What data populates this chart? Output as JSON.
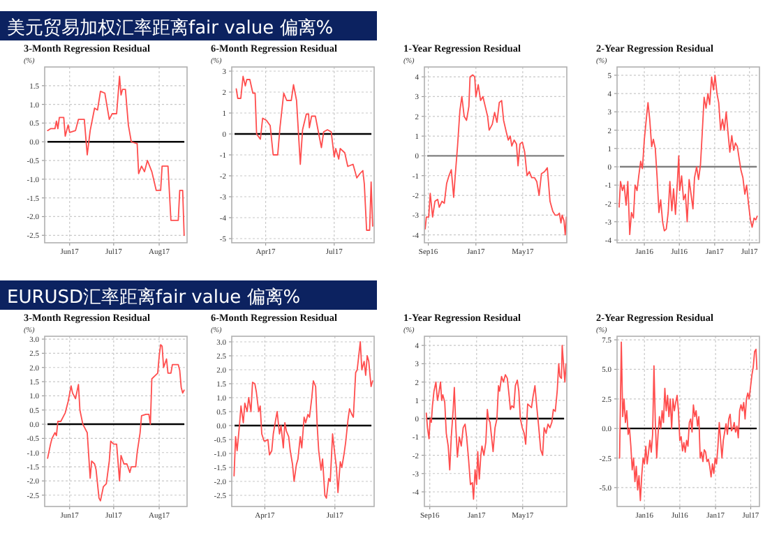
{
  "chart_data": [
    {
      "type": "line",
      "title": "3-Month Regression Residual",
      "ylabel": "(%)",
      "annotations": [
        "美元贸易加权汇率距离fair value 偏离%"
      ],
      "grid": true,
      "xlim": [
        "2017-05-15",
        "2017-08-20"
      ],
      "xticks": [
        {
          "value": "2017-06-01",
          "label": "Jun17"
        },
        {
          "value": "2017-07-01",
          "label": "Jul17"
        },
        {
          "value": "2017-08-01",
          "label": "Aug17"
        }
      ],
      "ylim": [
        -2.7,
        2.0
      ],
      "yticks": [
        1.5,
        {
          "value": 1,
          "label": "1.0"
        },
        0.5,
        {
          "value": 0,
          "label": "0.0"
        },
        -0.5,
        {
          "value": -1,
          "label": "-1.0"
        },
        -1.5,
        {
          "value": -2,
          "label": "-2.0"
        },
        -2.5
      ],
      "ref_lines": [
        {
          "axis": "y",
          "value": 0,
          "color": "#000000"
        }
      ],
      "x": [
        "2017-05-17",
        "2017-05-19",
        "2017-05-22",
        "2017-05-23",
        "2017-05-24",
        "2017-05-25",
        "2017-05-28",
        "2017-05-29",
        "2017-05-31",
        "2017-06-01",
        "2017-06-05",
        "2017-06-07",
        "2017-06-11",
        "2017-06-13",
        "2017-06-15",
        "2017-06-18",
        "2017-06-20",
        "2017-06-22",
        "2017-06-25",
        "2017-06-28",
        "2017-06-30",
        "2017-07-03",
        "2017-07-05",
        "2017-07-06",
        "2017-07-07",
        "2017-07-09",
        "2017-07-11",
        "2017-07-13",
        "2017-07-17",
        "2017-07-18",
        "2017-07-20",
        "2017-07-22",
        "2017-07-24",
        "2017-07-27",
        "2017-07-30",
        "2017-08-02",
        "2017-08-03",
        "2017-08-07",
        "2017-08-09",
        "2017-08-14",
        "2017-08-15",
        "2017-08-17",
        "2017-08-18"
      ],
      "series": [
        {
          "color": "#ff4d4d",
          "values": [
            0.3,
            0.35,
            0.35,
            0.55,
            0.35,
            0.65,
            0.65,
            0.15,
            0.45,
            0.25,
            0.3,
            0.6,
            0.6,
            -0.35,
            0.3,
            0.9,
            0.85,
            1.35,
            1.3,
            0.6,
            0.75,
            0.75,
            1.75,
            1.25,
            1.4,
            1.4,
            0.45,
            0.0,
            -0.05,
            -0.85,
            -0.65,
            -0.8,
            -0.5,
            -0.8,
            -1.3,
            -1.3,
            -0.65,
            -0.65,
            -2.1,
            -2.1,
            -1.3,
            -1.3,
            -2.5
          ]
        }
      ]
    },
    {
      "type": "line",
      "title": "6-Month Regression Residual",
      "ylabel": "(%)",
      "grid": true,
      "xlim": [
        "2017-02-15",
        "2017-08-23"
      ],
      "xticks": [
        {
          "value": "2017-04-01",
          "label": "Apr17"
        },
        {
          "value": "2017-07-01",
          "label": "Jul17"
        }
      ],
      "ylim": [
        -5.2,
        3.2
      ],
      "yticks": [
        3,
        2,
        1,
        0,
        -1,
        -2,
        -3,
        -4,
        -5
      ],
      "ref_lines": [
        {
          "axis": "y",
          "value": 0,
          "color": "#000000"
        }
      ],
      "x": [
        "2017-02-21",
        "2017-02-23",
        "2017-02-27",
        "2017-03-02",
        "2017-03-05",
        "2017-03-07",
        "2017-03-11",
        "2017-03-15",
        "2017-03-18",
        "2017-03-20",
        "2017-03-25",
        "2017-03-28",
        "2017-04-02",
        "2017-04-07",
        "2017-04-11",
        "2017-04-17",
        "2017-04-20",
        "2017-04-25",
        "2017-04-29",
        "2017-05-05",
        "2017-05-08",
        "2017-05-12",
        "2017-05-17",
        "2017-05-20",
        "2017-05-25",
        "2017-05-28",
        "2017-05-29",
        "2017-06-01",
        "2017-06-06",
        "2017-06-10",
        "2017-06-14",
        "2017-06-17",
        "2017-06-22",
        "2017-06-27",
        "2017-07-01",
        "2017-07-03",
        "2017-07-07",
        "2017-07-09",
        "2017-07-15",
        "2017-07-19",
        "2017-07-26",
        "2017-07-31",
        "2017-08-04",
        "2017-08-08",
        "2017-08-10",
        "2017-08-13",
        "2017-08-17",
        "2017-08-19",
        "2017-08-21"
      ],
      "series": [
        {
          "color": "#ff4d4d",
          "values": [
            2.15,
            1.7,
            1.7,
            2.75,
            2.3,
            2.6,
            2.6,
            1.95,
            1.95,
            0,
            -0.25,
            0.75,
            0.65,
            0.4,
            -1.0,
            -1.0,
            0.3,
            1.95,
            1.6,
            1.6,
            2.35,
            1.6,
            -1.45,
            0.2,
            0.95,
            0.95,
            0.3,
            0.85,
            0.85,
            0.1,
            -0.65,
            0.1,
            0.2,
            0.1,
            -1.1,
            -0.7,
            -1.2,
            -0.7,
            -0.9,
            -1.55,
            -1.45,
            -2.1,
            -1.9,
            -1.75,
            -2.4,
            -4.6,
            -4.6,
            -2.3,
            -4.4
          ]
        }
      ]
    },
    {
      "type": "line",
      "title": "1-Year Regression Residual",
      "ylabel": "(%)",
      "grid": true,
      "xlim": [
        "2016-08-22",
        "2017-08-22"
      ],
      "xticks": [
        {
          "value": "2016-09-01",
          "label": "Sep16"
        },
        {
          "value": "2017-01-01",
          "label": "Jan17"
        },
        {
          "value": "2017-05-01",
          "label": "May17"
        }
      ],
      "ylim": [
        -4.4,
        4.5
      ],
      "yticks": [
        4,
        3,
        2,
        1,
        0,
        -1,
        -2,
        -3,
        -4
      ],
      "ref_lines": [
        {
          "axis": "y",
          "value": 0,
          "color": "#808080"
        }
      ],
      "x": [
        "2016-08-24",
        "2016-08-27",
        "2016-09-02",
        "2016-09-06",
        "2016-09-12",
        "2016-09-18",
        "2016-09-25",
        "2016-09-29",
        "2016-10-06",
        "2016-10-12",
        "2016-10-18",
        "2016-10-24",
        "2016-10-30",
        "2016-11-05",
        "2016-11-09",
        "2016-11-15",
        "2016-11-21",
        "2016-11-26",
        "2016-12-02",
        "2016-12-08",
        "2016-12-14",
        "2016-12-17",
        "2016-12-24",
        "2016-12-29",
        "2017-01-01",
        "2017-01-07",
        "2017-01-13",
        "2017-01-19",
        "2017-01-25",
        "2017-01-31",
        "2017-02-04",
        "2017-02-12",
        "2017-02-18",
        "2017-02-24",
        "2017-03-02",
        "2017-03-08",
        "2017-03-13",
        "2017-03-20",
        "2017-03-25",
        "2017-03-30",
        "2017-04-03",
        "2017-04-09",
        "2017-04-15",
        "2017-04-19",
        "2017-04-24",
        "2017-04-30",
        "2017-05-06",
        "2017-05-12",
        "2017-05-18",
        "2017-05-24",
        "2017-05-31",
        "2017-06-06",
        "2017-06-12",
        "2017-06-18",
        "2017-06-26",
        "2017-07-03",
        "2017-07-10",
        "2017-07-17",
        "2017-07-23",
        "2017-07-29",
        "2017-08-03",
        "2017-08-07",
        "2017-08-10",
        "2017-08-15",
        "2017-08-18",
        "2017-08-21"
      ],
      "series": [
        {
          "color": "#ff4d4d",
          "values": [
            -3.7,
            -3.1,
            -3.1,
            -1.9,
            -3.1,
            -2.3,
            -2.2,
            -2.6,
            -2.3,
            -2.4,
            -1.4,
            -1.0,
            -0.7,
            -2.1,
            -1.0,
            0.5,
            2.3,
            3.0,
            2.0,
            1.8,
            2.5,
            4.0,
            4.1,
            4.0,
            3.0,
            3.6,
            2.8,
            3.0,
            2.5,
            2.0,
            1.3,
            1.6,
            2.2,
            1.7,
            2.7,
            2.8,
            1.8,
            1.2,
            0.8,
            1.0,
            0.5,
            0.8,
            0.6,
            -0.5,
            0.6,
            0.7,
            0.2,
            -1.0,
            -0.8,
            -1.1,
            -1.1,
            -1.3,
            -2.0,
            -0.9,
            -0.8,
            -0.6,
            -2.3,
            -2.8,
            -3.0,
            -3.0,
            -2.9,
            -3.4,
            -3.0,
            -3.3,
            -4.0,
            -3.1
          ]
        }
      ]
    },
    {
      "type": "line",
      "title": "2-Year Regression Residual",
      "ylabel": "(%)",
      "grid": true,
      "xlim": [
        "2015-08-12",
        "2017-08-22"
      ],
      "xticks": [
        {
          "value": "2016-01-01",
          "label": "Jan16"
        },
        {
          "value": "2016-07-01",
          "label": "Jul16"
        },
        {
          "value": "2017-01-01",
          "label": "Jan17"
        },
        {
          "value": "2017-07-01",
          "label": "Jul17"
        }
      ],
      "ylim": [
        -4.15,
        5.45
      ],
      "yticks": [
        5,
        4,
        3,
        2,
        1,
        0,
        -1,
        -2,
        -3,
        -4
      ],
      "ref_lines": [
        {
          "axis": "y",
          "value": 0,
          "color": "#808080"
        }
      ],
      "x": [
        "2015-08-23",
        "2015-08-30",
        "2015-09-09",
        "2015-09-18",
        "2015-09-28",
        "2015-10-07",
        "2015-10-17",
        "2015-10-26",
        "2015-11-05",
        "2015-11-14",
        "2015-11-24",
        "2015-12-03",
        "2015-12-13",
        "2015-12-22",
        "2016-01-01",
        "2016-01-13",
        "2016-01-20",
        "2016-01-29",
        "2016-02-08",
        "2016-02-17",
        "2016-02-27",
        "2016-03-07",
        "2016-03-17",
        "2016-03-26",
        "2016-04-05",
        "2016-04-14",
        "2016-04-24",
        "2016-05-04",
        "2016-05-13",
        "2016-05-23",
        "2016-06-01",
        "2016-06-11",
        "2016-06-20",
        "2016-06-28",
        "2016-07-03",
        "2016-07-13",
        "2016-07-23",
        "2016-08-02",
        "2016-08-11",
        "2016-08-21",
        "2016-08-31",
        "2016-09-10",
        "2016-09-18",
        "2016-09-29",
        "2016-10-09",
        "2016-10-19",
        "2016-10-28",
        "2016-11-07",
        "2016-11-17",
        "2016-11-27",
        "2016-12-06",
        "2016-12-16",
        "2016-12-26",
        "2017-01-03",
        "2017-01-13",
        "2017-01-22",
        "2017-02-01",
        "2017-02-11",
        "2017-02-20",
        "2017-03-02",
        "2017-03-12",
        "2017-03-21",
        "2017-03-31",
        "2017-04-10",
        "2017-04-19",
        "2017-04-29",
        "2017-05-09",
        "2017-05-18",
        "2017-05-28",
        "2017-06-07",
        "2017-06-16",
        "2017-06-26",
        "2017-07-06",
        "2017-07-15",
        "2017-07-25",
        "2017-08-03",
        "2017-08-10"
      ],
      "series": [
        {
          "color": "#ff4d4d",
          "values": [
            -2.2,
            -0.8,
            -1.3,
            -1.0,
            -2.1,
            -0.8,
            -3.7,
            -2.5,
            -2.8,
            -1.0,
            -1.3,
            -0.5,
            0.3,
            -0.1,
            1.5,
            2.8,
            3.5,
            2.6,
            1.1,
            1.5,
            1.0,
            -0.5,
            -2.5,
            -1.8,
            -3.0,
            -3.5,
            -3.4,
            -2.5,
            -0.8,
            -2.4,
            -1.2,
            -2.6,
            -1.0,
            0.6,
            -1.3,
            -0.5,
            -1.8,
            -1.5,
            -3.0,
            -0.7,
            -1.5,
            -2.3,
            -0.6,
            0.0,
            -0.7,
            0.1,
            1.8,
            3.8,
            3.2,
            4.0,
            3.4,
            4.9,
            4.2,
            5.0,
            4.0,
            3.5,
            2.0,
            2.6,
            2.0,
            3.0,
            1.8,
            0.8,
            1.7,
            0.9,
            1.3,
            1.1,
            0.4,
            -0.2,
            -0.6,
            -1.5,
            -1.0,
            -2.0,
            -2.9,
            -3.3,
            -2.8,
            -2.9,
            -2.7
          ]
        }
      ]
    },
    {
      "type": "line",
      "title": "3-Month Regression Residual",
      "ylabel": "(%)",
      "annotations": [
        "EURUSD汇率距离fair value 偏离%"
      ],
      "grid": true,
      "xlim": [
        "2017-05-15",
        "2017-08-20"
      ],
      "xticks": [
        {
          "value": "2017-06-01",
          "label": "Jun17"
        },
        {
          "value": "2017-07-01",
          "label": "Jul17"
        },
        {
          "value": "2017-08-01",
          "label": "Aug17"
        }
      ],
      "ylim": [
        -2.9,
        3.1
      ],
      "yticks": [
        {
          "value": 3,
          "label": "3.0"
        },
        2.5,
        {
          "value": 2,
          "label": "2.0"
        },
        1.5,
        {
          "value": 1,
          "label": "1.0"
        },
        0.5,
        {
          "value": 0,
          "label": "0.0"
        },
        -0.5,
        {
          "value": -1,
          "label": "-1.0"
        },
        -1.5,
        {
          "value": -2,
          "label": "-2.0"
        },
        -2.5
      ],
      "ref_lines": [
        {
          "axis": "y",
          "value": 0,
          "color": "#000000"
        }
      ],
      "x": [
        "2017-05-17",
        "2017-05-19",
        "2017-05-20",
        "2017-05-22",
        "2017-05-23",
        "2017-05-24",
        "2017-05-26",
        "2017-05-28",
        "2017-05-29",
        "2017-05-31",
        "2017-06-02",
        "2017-06-03",
        "2017-06-05",
        "2017-06-07",
        "2017-06-08",
        "2017-06-10",
        "2017-06-11",
        "2017-06-13",
        "2017-06-15",
        "2017-06-16",
        "2017-06-18",
        "2017-06-19",
        "2017-06-21",
        "2017-06-22",
        "2017-06-24",
        "2017-06-26",
        "2017-06-28",
        "2017-06-29",
        "2017-07-01",
        "2017-07-03",
        "2017-07-05",
        "2017-07-06",
        "2017-07-08",
        "2017-07-10",
        "2017-07-12",
        "2017-07-13",
        "2017-07-16",
        "2017-07-17",
        "2017-07-19",
        "2017-07-20",
        "2017-07-23",
        "2017-07-25",
        "2017-07-26",
        "2017-07-27",
        "2017-07-29",
        "2017-07-31",
        "2017-08-01",
        "2017-08-02",
        "2017-08-03",
        "2017-08-04",
        "2017-08-06",
        "2017-08-07",
        "2017-08-09",
        "2017-08-10",
        "2017-08-14",
        "2017-08-15",
        "2017-08-16",
        "2017-08-17",
        "2017-08-18"
      ],
      "series": [
        {
          "color": "#ff4d4d",
          "values": [
            -1.2,
            -0.7,
            -0.5,
            -0.3,
            -0.4,
            0.1,
            0.1,
            0.3,
            0.4,
            0.8,
            1.35,
            1.1,
            0.9,
            1.4,
            0.5,
            0.0,
            -0.1,
            -0.3,
            -1.9,
            -1.3,
            -1.4,
            -1.6,
            -2.6,
            -2.7,
            -2.2,
            -2.1,
            -1.3,
            -0.6,
            -0.7,
            -0.7,
            -2.0,
            -1.1,
            -1.4,
            -1.4,
            -1.7,
            -1.5,
            -1.5,
            -1.0,
            -0.3,
            0.3,
            0.35,
            0.35,
            0.0,
            1.6,
            1.7,
            1.8,
            2.4,
            2.8,
            2.75,
            2.0,
            2.3,
            1.8,
            1.8,
            2.1,
            2.1,
            1.9,
            1.3,
            1.1,
            1.2
          ]
        }
      ]
    },
    {
      "type": "line",
      "title": "6-Month Regression Residual",
      "ylabel": "(%)",
      "grid": true,
      "xlim": [
        "2017-02-17",
        "2017-08-21"
      ],
      "xticks": [
        {
          "value": "2017-04-01",
          "label": "Apr17"
        },
        {
          "value": "2017-07-01",
          "label": "Jul17"
        }
      ],
      "ylim": [
        -2.9,
        3.2
      ],
      "yticks": [
        {
          "value": 3,
          "label": "3.0"
        },
        2.5,
        {
          "value": 2,
          "label": "2.0"
        },
        1.5,
        {
          "value": 1,
          "label": "1.0"
        },
        0.5,
        {
          "value": 0,
          "label": "0.0"
        },
        -0.5,
        {
          "value": -1,
          "label": "-1.0"
        },
        -1.5,
        {
          "value": -2,
          "label": "-2.0"
        },
        -2.5
      ],
      "ref_lines": [
        {
          "axis": "y",
          "value": 0,
          "color": "#000000"
        }
      ],
      "x": [
        "2017-02-20",
        "2017-02-22",
        "2017-02-24",
        "2017-02-27",
        "2017-03-01",
        "2017-03-04",
        "2017-03-06",
        "2017-03-09",
        "2017-03-11",
        "2017-03-14",
        "2017-03-16",
        "2017-03-19",
        "2017-03-21",
        "2017-03-24",
        "2017-03-26",
        "2017-03-28",
        "2017-03-31",
        "2017-04-02",
        "2017-04-05",
        "2017-04-07",
        "2017-04-10",
        "2017-04-12",
        "2017-04-15",
        "2017-04-17",
        "2017-04-20",
        "2017-04-22",
        "2017-04-25",
        "2017-04-27",
        "2017-04-29",
        "2017-05-02",
        "2017-05-04",
        "2017-05-07",
        "2017-05-09",
        "2017-05-12",
        "2017-05-14",
        "2017-05-17",
        "2017-05-19",
        "2017-05-22",
        "2017-05-24",
        "2017-05-27",
        "2017-05-29",
        "2017-06-01",
        "2017-06-03",
        "2017-06-06",
        "2017-06-08",
        "2017-06-10",
        "2017-06-13",
        "2017-06-15",
        "2017-06-18",
        "2017-06-20",
        "2017-06-23",
        "2017-06-25",
        "2017-06-28",
        "2017-06-30",
        "2017-07-03",
        "2017-07-05",
        "2017-07-08",
        "2017-07-10",
        "2017-07-13",
        "2017-07-15",
        "2017-07-18",
        "2017-07-20",
        "2017-07-23",
        "2017-07-25",
        "2017-07-28",
        "2017-07-30",
        "2017-08-01",
        "2017-08-03",
        "2017-08-05",
        "2017-08-08",
        "2017-08-10",
        "2017-08-12",
        "2017-08-14",
        "2017-08-17",
        "2017-08-19"
      ],
      "series": [
        {
          "color": "#ff4d4d",
          "values": [
            -1.8,
            -0.4,
            -0.9,
            0.0,
            0.7,
            0.1,
            0.8,
            0.5,
            1.0,
            0.5,
            1.55,
            1.5,
            1.2,
            0.5,
            0.7,
            -0.3,
            -0.55,
            -0.55,
            -0.5,
            -1.05,
            -0.9,
            -0.3,
            0.2,
            0.5,
            -0.3,
            0.0,
            -0.8,
            0.1,
            -0.2,
            -0.4,
            -0.9,
            -1.4,
            -2.0,
            -1.4,
            -1.2,
            -0.4,
            -0.8,
            0.3,
            0.1,
            0.4,
            0.3,
            1.0,
            1.6,
            1.4,
            0.0,
            -0.9,
            -1.6,
            -1.2,
            -2.5,
            -2.6,
            -1.9,
            -2.0,
            -0.3,
            -0.8,
            -1.5,
            -2.4,
            -1.3,
            -1.5,
            -1.0,
            -0.6,
            0.2,
            0.6,
            0.4,
            0.3,
            1.9,
            2.0,
            2.5,
            3.0,
            2.0,
            2.3,
            1.8,
            2.5,
            2.3,
            1.4,
            1.6
          ]
        }
      ]
    },
    {
      "type": "line",
      "title": "1-Year Regression Residual",
      "ylabel": "(%)",
      "grid": true,
      "xlim": [
        "2016-08-18",
        "2017-08-24"
      ],
      "xticks": [
        {
          "value": "2016-09-01",
          "label": "Sep16"
        },
        {
          "value": "2017-01-01",
          "label": "Jan17"
        },
        {
          "value": "2017-05-01",
          "label": "May17"
        }
      ],
      "ylim": [
        -4.8,
        4.5
      ],
      "yticks": [
        4,
        3,
        2,
        1,
        0,
        -1,
        -2,
        -3,
        -4
      ],
      "ref_lines": [
        {
          "axis": "y",
          "value": 0,
          "color": "#000000"
        }
      ],
      "x": [
        "2016-08-23",
        "2016-08-26",
        "2016-08-30",
        "2016-09-02",
        "2016-09-05",
        "2016-09-08",
        "2016-09-12",
        "2016-09-17",
        "2016-09-21",
        "2016-09-24",
        "2016-09-29",
        "2016-10-02",
        "2016-10-05",
        "2016-10-10",
        "2016-10-14",
        "2016-10-19",
        "2016-10-23",
        "2016-10-27",
        "2016-11-01",
        "2016-11-04",
        "2016-11-08",
        "2016-11-12",
        "2016-11-17",
        "2016-11-22",
        "2016-11-27",
        "2016-12-02",
        "2016-12-06",
        "2016-12-11",
        "2016-12-16",
        "2016-12-21",
        "2016-12-24",
        "2016-12-28",
        "2017-01-01",
        "2017-01-04",
        "2017-01-08",
        "2017-01-12",
        "2017-01-15",
        "2017-01-20",
        "2017-01-25",
        "2017-01-29",
        "2017-02-01",
        "2017-02-05",
        "2017-02-10",
        "2017-02-13",
        "2017-02-18",
        "2017-02-23",
        "2017-02-27",
        "2017-03-02",
        "2017-03-07",
        "2017-03-12",
        "2017-03-17",
        "2017-03-22",
        "2017-03-27",
        "2017-03-30",
        "2017-04-03",
        "2017-04-08",
        "2017-04-12",
        "2017-04-17",
        "2017-04-21",
        "2017-04-25",
        "2017-04-30",
        "2017-05-05",
        "2017-05-09",
        "2017-05-14",
        "2017-05-19",
        "2017-05-24",
        "2017-05-28",
        "2017-06-02",
        "2017-06-07",
        "2017-06-12",
        "2017-06-17",
        "2017-06-22",
        "2017-06-26",
        "2017-07-01",
        "2017-07-06",
        "2017-07-11",
        "2017-07-16",
        "2017-07-20",
        "2017-07-25",
        "2017-07-30",
        "2017-08-03",
        "2017-08-06",
        "2017-08-10",
        "2017-08-12",
        "2017-08-16",
        "2017-08-19",
        "2017-08-22"
      ],
      "series": [
        {
          "color": "#ff4d4d",
          "values": [
            0.3,
            -0.5,
            -1.1,
            0.0,
            -0.2,
            0.7,
            1.5,
            2.0,
            1.0,
            1.3,
            2.0,
            1.0,
            1.3,
            0.9,
            -0.8,
            -1.5,
            -2.8,
            -1.0,
            0.5,
            1.7,
            -0.5,
            -2.1,
            -1.0,
            -1.5,
            -0.5,
            -0.3,
            -1.0,
            -2.2,
            -3.6,
            -3.5,
            -4.4,
            -2.8,
            -3.6,
            -1.8,
            -3.3,
            -2.0,
            -1.5,
            -2.0,
            -1.3,
            0.5,
            0.0,
            -0.2,
            -1.2,
            -1.8,
            -0.5,
            0.0,
            1.8,
            1.5,
            2.3,
            2.0,
            2.4,
            2.2,
            1.2,
            0.5,
            0.7,
            0.6,
            1.8,
            2.1,
            1.5,
            0.0,
            -0.5,
            -0.8,
            -1.4,
            0.8,
            0.7,
            0.6,
            1.2,
            1.8,
            0.6,
            -0.5,
            -1.7,
            -2.0,
            -0.5,
            -0.8,
            -0.3,
            -0.5,
            -0.2,
            0.5,
            0.4,
            1.5,
            3.0,
            2.3,
            2.2,
            4.0,
            2.8,
            2.0,
            3.0
          ]
        }
      ]
    },
    {
      "type": "line",
      "title": "2-Year Regression Residual",
      "ylabel": "(%)",
      "grid": true,
      "xlim": [
        "2015-08-13",
        "2017-08-15"
      ],
      "xticks": [
        {
          "value": "2016-01-01",
          "label": "Jan16"
        },
        {
          "value": "2016-07-01",
          "label": "Jul16"
        },
        {
          "value": "2017-01-01",
          "label": "Jan17"
        },
        {
          "value": "2017-07-01",
          "label": "Jul17"
        }
      ],
      "ylim": [
        -6.6,
        7.8
      ],
      "yticks": [
        7.5,
        {
          "value": 5,
          "label": "5.0"
        },
        2.5,
        {
          "value": 0,
          "label": "0.0"
        },
        -2.5,
        {
          "value": -5,
          "label": "-5.0"
        }
      ],
      "ref_lines": [
        {
          "axis": "y",
          "value": 0,
          "color": "#000000"
        }
      ],
      "x": [
        "2015-08-26",
        "2015-09-04",
        "2015-09-11",
        "2015-09-18",
        "2015-09-25",
        "2015-10-02",
        "2015-10-09",
        "2015-10-16",
        "2015-10-23",
        "2015-10-30",
        "2015-11-06",
        "2015-11-13",
        "2015-11-20",
        "2015-11-27",
        "2015-12-04",
        "2015-12-11",
        "2015-12-18",
        "2015-12-25",
        "2016-01-01",
        "2016-01-08",
        "2016-01-15",
        "2016-01-22",
        "2016-01-29",
        "2016-02-05",
        "2016-02-12",
        "2016-02-19",
        "2016-02-26",
        "2016-03-04",
        "2016-03-11",
        "2016-03-18",
        "2016-03-25",
        "2016-04-01",
        "2016-04-08",
        "2016-04-15",
        "2016-04-22",
        "2016-04-29",
        "2016-05-06",
        "2016-05-13",
        "2016-05-20",
        "2016-05-27",
        "2016-06-03",
        "2016-06-10",
        "2016-06-17",
        "2016-06-24",
        "2016-07-01",
        "2016-07-08",
        "2016-07-15",
        "2016-07-22",
        "2016-07-29",
        "2016-08-05",
        "2016-08-12",
        "2016-08-19",
        "2016-08-26",
        "2016-09-02",
        "2016-09-09",
        "2016-09-16",
        "2016-09-23",
        "2016-09-30",
        "2016-10-07",
        "2016-10-14",
        "2016-10-21",
        "2016-10-28",
        "2016-11-04",
        "2016-11-11",
        "2016-11-18",
        "2016-11-25",
        "2016-12-02",
        "2016-12-09",
        "2016-12-16",
        "2016-12-23",
        "2016-12-30",
        "2017-01-06",
        "2017-01-13",
        "2017-01-20",
        "2017-01-27",
        "2017-02-03",
        "2017-02-10",
        "2017-02-17",
        "2017-02-24",
        "2017-03-03",
        "2017-03-10",
        "2017-03-17",
        "2017-03-24",
        "2017-03-31",
        "2017-04-07",
        "2017-04-14",
        "2017-04-21",
        "2017-04-28",
        "2017-05-05",
        "2017-05-12",
        "2017-05-19",
        "2017-05-26",
        "2017-06-02",
        "2017-06-09",
        "2017-06-16",
        "2017-06-23",
        "2017-06-30",
        "2017-07-07",
        "2017-07-14",
        "2017-07-21",
        "2017-07-28",
        "2017-08-02"
      ],
      "series": [
        {
          "color": "#ff4d4d",
          "values": [
            -2.5,
            7.3,
            1.0,
            2.5,
            0.5,
            1.5,
            -0.5,
            0.0,
            -1.5,
            -3.5,
            -2.5,
            -4.5,
            -3.2,
            -5.2,
            -4.0,
            -6.1,
            -4.0,
            -2.5,
            -3.0,
            -1.5,
            -3.0,
            -2.0,
            -1.0,
            -2.0,
            -0.5,
            5.3,
            0.5,
            -2.5,
            -0.5,
            1.0,
            0.0,
            1.5,
            0.5,
            3.4,
            1.5,
            2.8,
            1.0,
            2.5,
            0.0,
            2.5,
            1.5,
            2.2,
            2.8,
            1.5,
            -1.0,
            -0.7,
            -1.9,
            -1.2,
            -2.0,
            -1.0,
            -1.5,
            0.5,
            0.8,
            -0.3,
            2.0,
            1.0,
            1.5,
            0.2,
            1.0,
            -2.5,
            -2.0,
            -2.8,
            -1.8,
            -2.0,
            -2.8,
            -2.6,
            -3.2,
            -4.1,
            -3.0,
            -3.8,
            -2.5,
            -3.0,
            -1.6,
            0.5,
            -1.0,
            -2.5,
            -1.0,
            -0.3,
            0.4,
            -0.5,
            0.8,
            1.2,
            -0.2,
            0.0,
            0.5,
            -0.3,
            0.2,
            -0.8,
            1.5,
            2.0,
            1.5,
            2.2,
            0.8,
            2.5,
            3.0,
            2.5,
            3.5,
            4.5,
            5.2,
            6.5,
            6.7,
            5.0
          ]
        }
      ]
    }
  ]
}
